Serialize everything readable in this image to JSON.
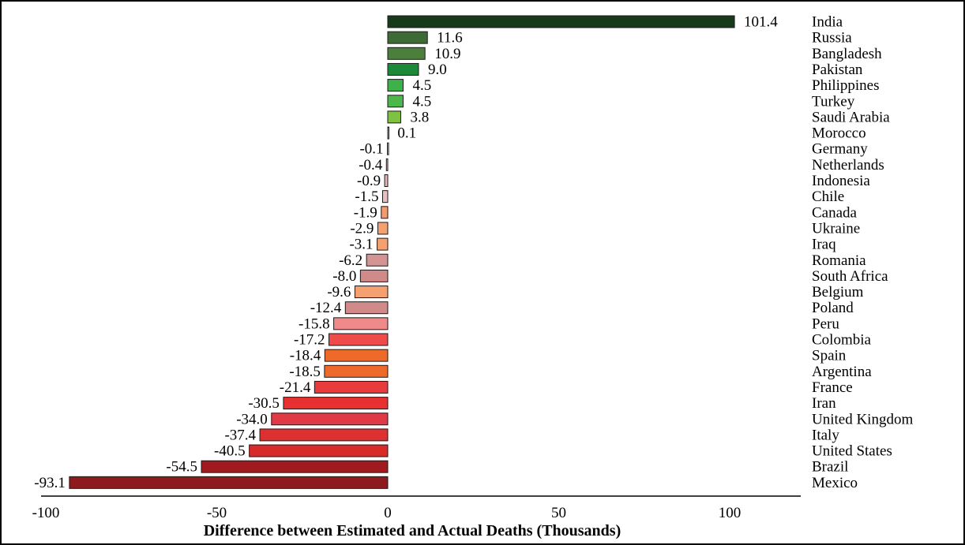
{
  "chart_data": {
    "type": "bar",
    "orientation": "horizontal",
    "title": "",
    "xlabel": "Difference between Estimated  and Actual Deaths (Thousands)",
    "ylabel": "",
    "xlim": [
      -100,
      110
    ],
    "xticks": [
      -100,
      -50,
      0,
      50,
      100
    ],
    "xtick_labels": [
      "-100",
      "-50",
      "0",
      "50",
      "100"
    ],
    "grid": false,
    "legend": "none",
    "categories": [
      "India",
      "Russia",
      "Bangladesh",
      "Pakistan",
      "Philippines",
      "Turkey",
      "Saudi Arabia",
      "Morocco",
      "Germany",
      "Netherlands",
      "Indonesia",
      "Chile",
      "Canada",
      "Ukraine",
      "Iraq",
      "Romania",
      "South Africa",
      "Belgium",
      "Poland",
      "Peru",
      "Colombia",
      "Spain",
      "Argentina",
      "France",
      "Iran",
      "United Kingdom",
      "Italy",
      "United States",
      "Brazil",
      "Mexico"
    ],
    "values": [
      101.4,
      11.6,
      10.9,
      9.0,
      4.5,
      4.5,
      3.8,
      0.1,
      -0.1,
      -0.4,
      -0.9,
      -1.5,
      -1.9,
      -2.9,
      -3.1,
      -6.2,
      -8.0,
      -9.6,
      -12.4,
      -15.8,
      -17.2,
      -18.4,
      -18.5,
      -21.4,
      -30.5,
      -34.0,
      -37.4,
      -40.5,
      -54.5,
      -93.1
    ],
    "value_labels": [
      "101.4",
      "11.6",
      "10.9",
      "9.0",
      "4.5",
      "4.5",
      "3.8",
      "0.1",
      "-0.1",
      "-0.4",
      "-0.9",
      "-1.5",
      "-1.9",
      "-2.9",
      "-3.1",
      "-6.2",
      "-8.0",
      "-9.6",
      "-12.4",
      "-15.8",
      "-17.2",
      "-18.4",
      "-18.5",
      "-21.4",
      "-30.5",
      "-34.0",
      "-37.4",
      "-40.5",
      "-54.5",
      "-93.1"
    ],
    "colors": [
      "#163a1a",
      "#3e6b35",
      "#4d7f3c",
      "#1d8a3a",
      "#3db24a",
      "#4cb84c",
      "#7ec241",
      "#d8d8d8",
      "#f0d8d8",
      "#e8c8c8",
      "#e8b8b8",
      "#e8c0c0",
      "#f59a6a",
      "#f5a070",
      "#f5a070",
      "#d49494",
      "#d08a8a",
      "#f5a070",
      "#d08a8a",
      "#f08a8a",
      "#ef4b4b",
      "#ee6a2a",
      "#ee6a2a",
      "#e83c3c",
      "#e83030",
      "#e03a46",
      "#de3030",
      "#d92a2a",
      "#a01a20",
      "#8e1a1e"
    ]
  }
}
